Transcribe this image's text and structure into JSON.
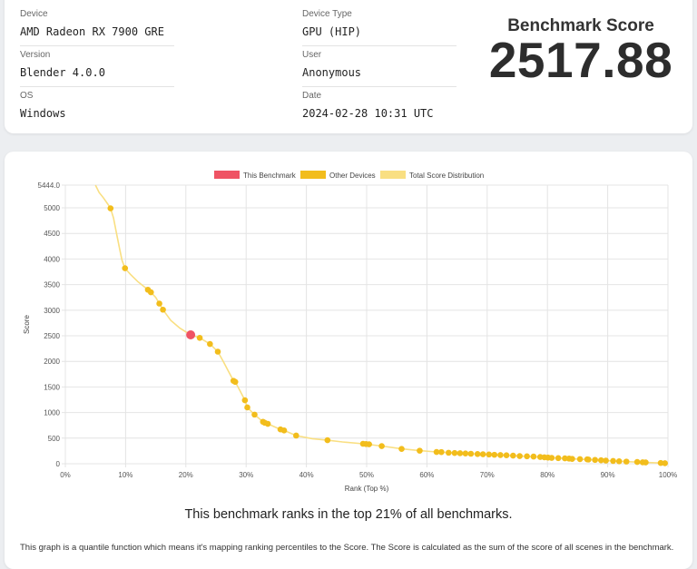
{
  "info": {
    "device": {
      "label": "Device",
      "value": "AMD Radeon RX 7900 GRE"
    },
    "version": {
      "label": "Version",
      "value": "Blender 4.0.0"
    },
    "os": {
      "label": "OS",
      "value": "Windows"
    },
    "device_type": {
      "label": "Device Type",
      "value": "GPU (HIP)"
    },
    "user": {
      "label": "User",
      "value": "Anonymous"
    },
    "date": {
      "label": "Date",
      "value": "2024-02-28 10:31 UTC"
    }
  },
  "score": {
    "label": "Benchmark Score",
    "value": "2517.88"
  },
  "rank_text": "This benchmark ranks in the top 21% of all benchmarks.",
  "description": "This graph is a quantile function which means it's mapping ranking percentiles to the Score. The Score is calculated as the sum of the score of all scenes in the benchmark.",
  "colors": {
    "this": "#ef5364",
    "other": "#f2bd1c",
    "distribution": "#f9df82"
  },
  "chart_data": {
    "type": "scatter",
    "xlabel": "Rank (Top %)",
    "ylabel": "Score",
    "xlim": [
      0,
      100
    ],
    "ylim": [
      0,
      5444
    ],
    "x_ticks": [
      0,
      10,
      20,
      30,
      40,
      50,
      60,
      70,
      80,
      90,
      100
    ],
    "x_tick_labels": [
      "0%",
      "10%",
      "20%",
      "30%",
      "40%",
      "50%",
      "60%",
      "70%",
      "80%",
      "90%",
      "100%"
    ],
    "y_ticks": [
      0,
      500,
      1000,
      1500,
      2000,
      2500,
      3000,
      3500,
      4000,
      4500,
      5000,
      5444
    ],
    "y_tick_labels": [
      "0",
      "500",
      "1000",
      "1500",
      "2000",
      "2500",
      "3000",
      "3500",
      "4000",
      "4500",
      "5000",
      "5444.0"
    ],
    "grid": true,
    "legend_position": "top",
    "legend": [
      "This Benchmark",
      "Other Devices",
      "Total Score Distribution"
    ],
    "series": [
      {
        "name": "This Benchmark",
        "points": [
          [
            20.8,
            2518
          ]
        ]
      },
      {
        "name": "Other Devices",
        "points": [
          [
            7.5,
            4990
          ],
          [
            9.9,
            3820
          ],
          [
            13.7,
            3400
          ],
          [
            14.2,
            3350
          ],
          [
            15.6,
            3130
          ],
          [
            16.2,
            3010
          ],
          [
            22.3,
            2460
          ],
          [
            24.0,
            2340
          ],
          [
            25.3,
            2190
          ],
          [
            27.9,
            1620
          ],
          [
            28.2,
            1600
          ],
          [
            29.8,
            1240
          ],
          [
            30.2,
            1100
          ],
          [
            31.4,
            960
          ],
          [
            32.8,
            820
          ],
          [
            33.1,
            800
          ],
          [
            33.6,
            780
          ],
          [
            35.7,
            670
          ],
          [
            36.3,
            650
          ],
          [
            38.3,
            550
          ],
          [
            43.5,
            460
          ],
          [
            49.4,
            390
          ],
          [
            49.9,
            385
          ],
          [
            50.4,
            380
          ],
          [
            52.5,
            345
          ],
          [
            55.8,
            290
          ],
          [
            58.8,
            255
          ],
          [
            61.6,
            230
          ],
          [
            62.4,
            228
          ],
          [
            63.6,
            215
          ],
          [
            64.6,
            210
          ],
          [
            65.5,
            205
          ],
          [
            66.4,
            200
          ],
          [
            67.3,
            195
          ],
          [
            68.4,
            190
          ],
          [
            69.3,
            185
          ],
          [
            70.3,
            180
          ],
          [
            71.2,
            175
          ],
          [
            72.2,
            170
          ],
          [
            73.2,
            165
          ],
          [
            74.3,
            158
          ],
          [
            75.4,
            150
          ],
          [
            76.6,
            145
          ],
          [
            77.7,
            140
          ],
          [
            78.8,
            132
          ],
          [
            79.5,
            125
          ],
          [
            80.1,
            120
          ],
          [
            80.7,
            115
          ],
          [
            81.8,
            110
          ],
          [
            82.9,
            105
          ],
          [
            83.6,
            100
          ],
          [
            84.1,
            95
          ],
          [
            85.4,
            90
          ],
          [
            86.6,
            85
          ],
          [
            86.8,
            82
          ],
          [
            87.9,
            75
          ],
          [
            88.9,
            68
          ],
          [
            89.7,
            62
          ],
          [
            90.9,
            55
          ],
          [
            91.9,
            48
          ],
          [
            93.1,
            42
          ],
          [
            94.9,
            35
          ],
          [
            95.8,
            28
          ],
          [
            96.3,
            25
          ],
          [
            98.8,
            15
          ],
          [
            99.5,
            10
          ]
        ]
      },
      {
        "name": "Total Score Distribution",
        "points": [
          [
            5.0,
            5444
          ],
          [
            5.6,
            5300
          ],
          [
            6.3,
            5200
          ],
          [
            7.0,
            5080
          ],
          [
            7.5,
            4990
          ],
          [
            8.0,
            4800
          ],
          [
            8.5,
            4500
          ],
          [
            9.0,
            4200
          ],
          [
            9.4,
            3980
          ],
          [
            9.9,
            3820
          ],
          [
            10.8,
            3700
          ],
          [
            12.0,
            3560
          ],
          [
            13.7,
            3400
          ],
          [
            14.2,
            3350
          ],
          [
            15.0,
            3250
          ],
          [
            15.6,
            3130
          ],
          [
            16.2,
            3010
          ],
          [
            17.5,
            2800
          ],
          [
            19.0,
            2650
          ],
          [
            20.8,
            2518
          ],
          [
            22.3,
            2460
          ],
          [
            24.0,
            2340
          ],
          [
            25.3,
            2190
          ],
          [
            26.2,
            2000
          ],
          [
            27.1,
            1800
          ],
          [
            27.9,
            1620
          ],
          [
            28.2,
            1600
          ],
          [
            29.0,
            1420
          ],
          [
            29.8,
            1240
          ],
          [
            30.2,
            1100
          ],
          [
            31.4,
            960
          ],
          [
            32.8,
            820
          ],
          [
            33.6,
            780
          ],
          [
            35.7,
            670
          ],
          [
            36.3,
            650
          ],
          [
            38.3,
            550
          ],
          [
            41.0,
            490
          ],
          [
            43.5,
            460
          ],
          [
            46.0,
            425
          ],
          [
            49.4,
            390
          ],
          [
            52.5,
            345
          ],
          [
            55.8,
            290
          ],
          [
            58.8,
            255
          ],
          [
            61.6,
            230
          ],
          [
            65.5,
            205
          ],
          [
            70.3,
            180
          ],
          [
            75.4,
            150
          ],
          [
            79.5,
            125
          ],
          [
            83.6,
            100
          ],
          [
            87.9,
            75
          ],
          [
            91.9,
            48
          ],
          [
            95.8,
            28
          ],
          [
            98.8,
            15
          ],
          [
            100.0,
            5
          ]
        ]
      }
    ]
  }
}
